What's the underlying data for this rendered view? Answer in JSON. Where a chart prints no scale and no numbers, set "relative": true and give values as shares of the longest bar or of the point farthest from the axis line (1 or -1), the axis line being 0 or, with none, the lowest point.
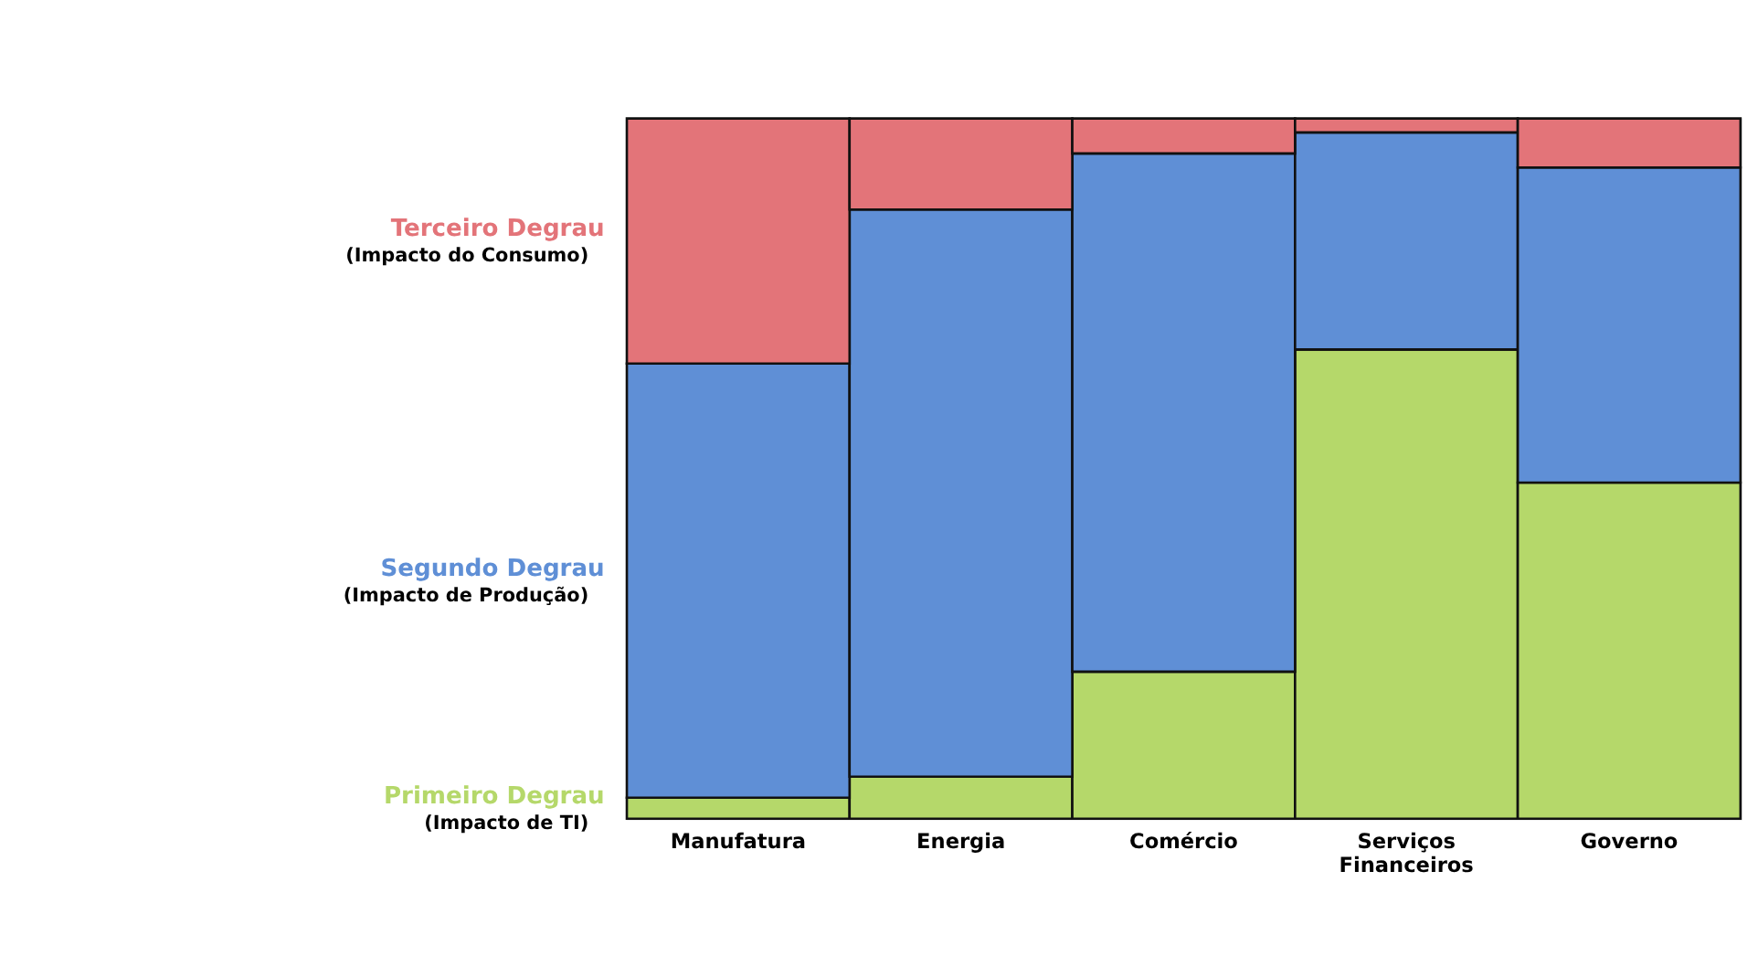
{
  "chart_data": {
    "type": "bar",
    "stacked": true,
    "relative": true,
    "legend": false,
    "categories": [
      "Manufatura",
      "Energia",
      "Comércio",
      "Serviços Financeiros",
      "Governo"
    ],
    "series": [
      {
        "name": "Primeiro Degrau",
        "color": "#b5d86a",
        "values": [
          0.03,
          0.06,
          0.21,
          0.67,
          0.48
        ]
      },
      {
        "name": "Segundo Degrau",
        "color": "#5f8fd6",
        "values": [
          0.62,
          0.81,
          0.74,
          0.31,
          0.45
        ]
      },
      {
        "name": "Terceiro Degrau",
        "color": "#e37479",
        "values": [
          0.35,
          0.13,
          0.05,
          0.02,
          0.07
        ]
      }
    ],
    "annotations": [
      "(Impacto de TI)",
      "(Impacto de Produção)",
      "(Impacto do Consumo)"
    ]
  }
}
